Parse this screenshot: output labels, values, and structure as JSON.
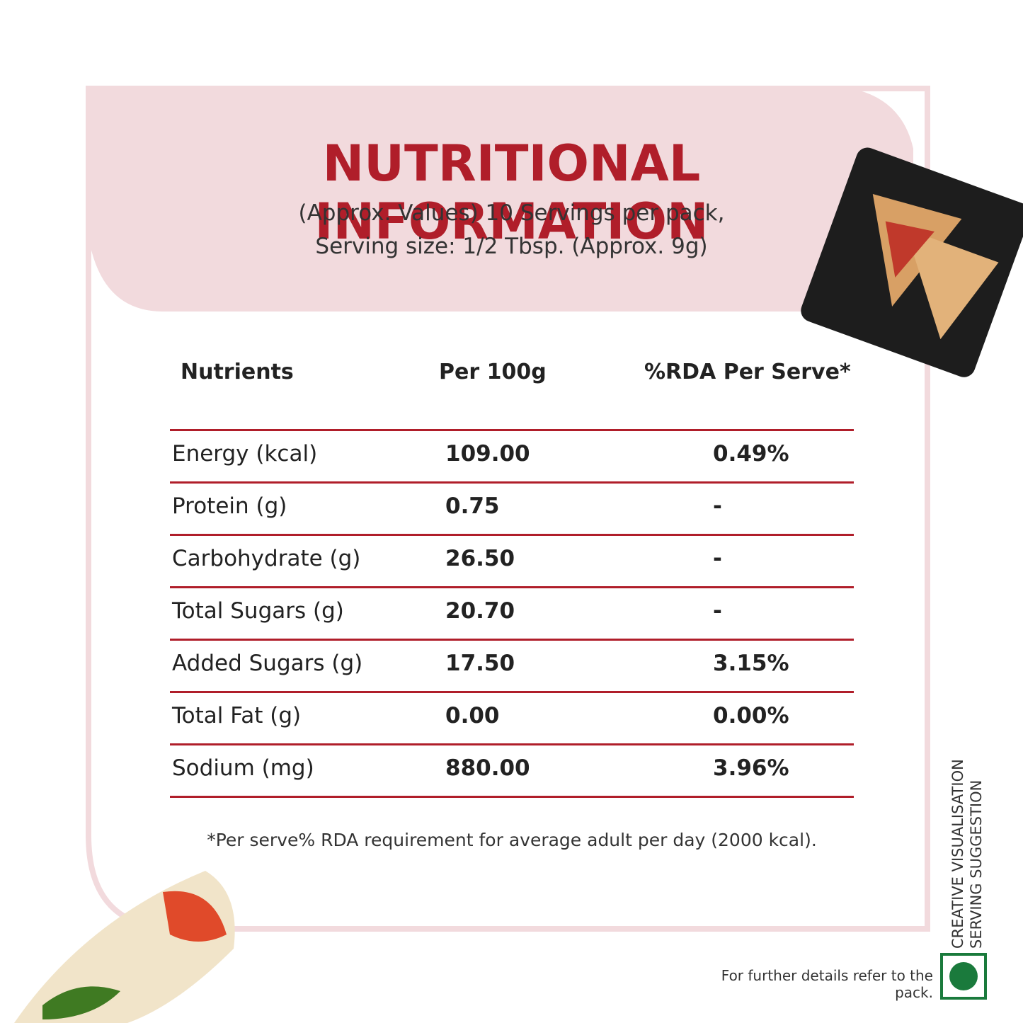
{
  "header": {
    "title": "NUTRITIONAL INFORMATION",
    "subtitle_line1": "(Approx. Values) 10 Servings per pack,",
    "subtitle_line2": "Serving size: 1/2 Tbsp. (Approx. 9g)"
  },
  "table": {
    "columns": [
      "Nutrients",
      "Per 100g",
      "%RDA Per Serve*"
    ],
    "rows": [
      [
        "Energy (kcal)",
        "109.00",
        "0.49%"
      ],
      [
        "Protein (g)",
        "0.75",
        "-"
      ],
      [
        "Carbohydrate (g)",
        "26.50",
        "-"
      ],
      [
        "Total Sugars (g)",
        "20.70",
        "-"
      ],
      [
        "Added Sugars (g)",
        "17.50",
        "3.15%"
      ],
      [
        "Total Fat (g)",
        "0.00",
        "0.00%"
      ],
      [
        "Sodium (mg)",
        "880.00",
        "3.96%"
      ]
    ]
  },
  "footnote": "*Per serve% RDA requirement for average adult per day (2000 kcal).",
  "side_text_line1": "CREATIVE VISUALISATION",
  "side_text_line2": "SERVING SUGGESTION",
  "pack_note": "For further details refer to the pack."
}
